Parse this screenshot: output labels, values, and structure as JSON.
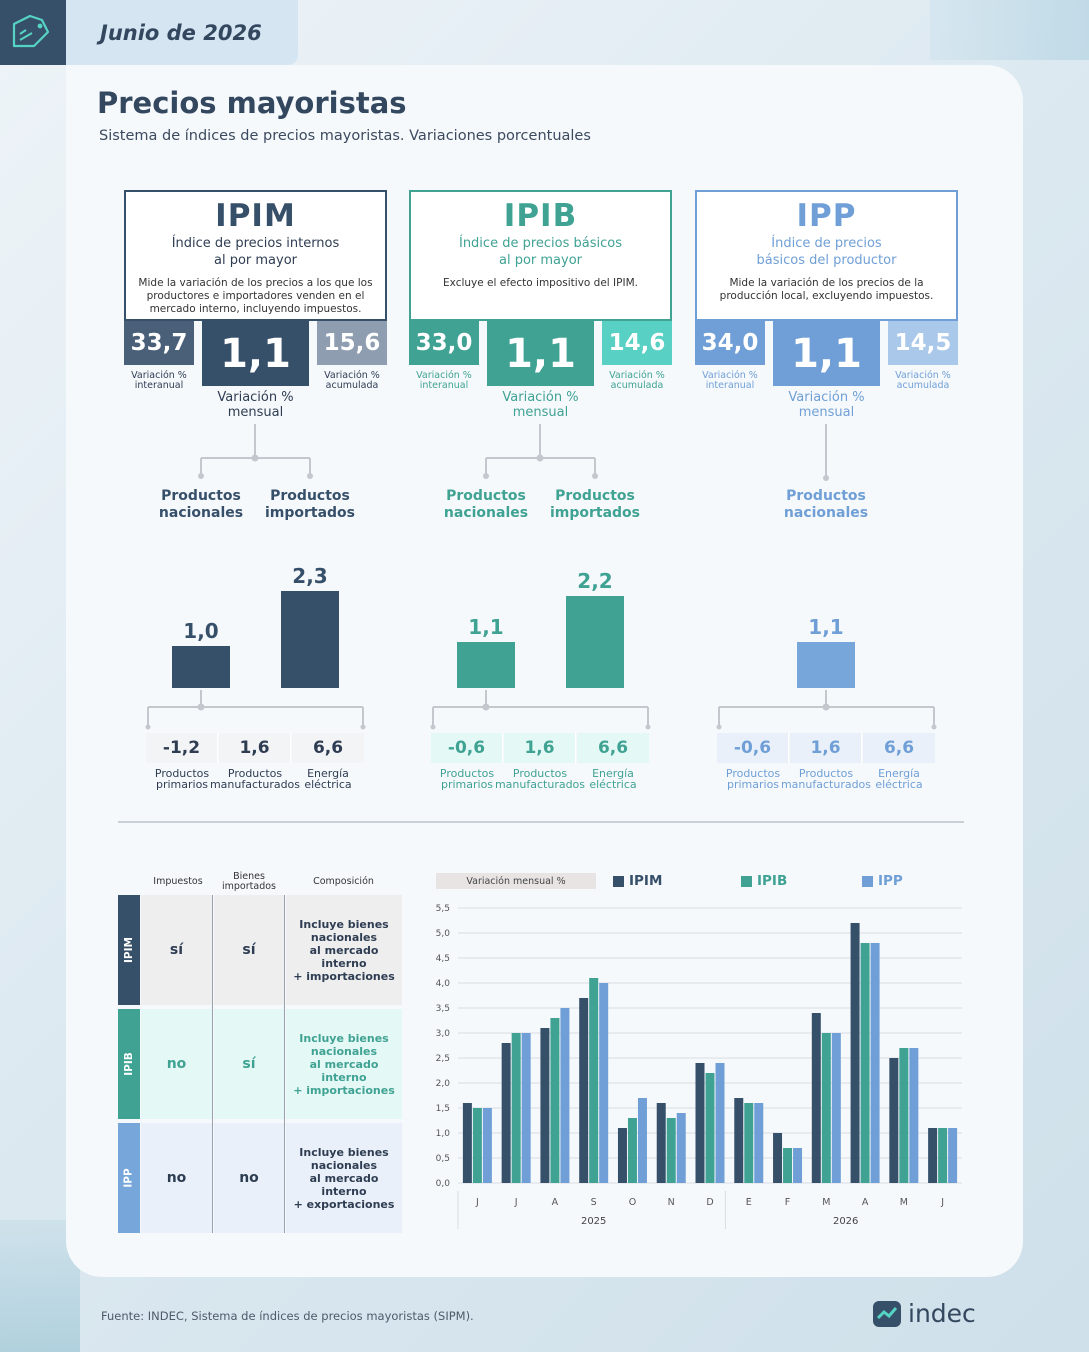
{
  "header": {
    "date": "Junio de 2026"
  },
  "title": "Precios mayoristas",
  "subtitle": "Sistema de índices de precios mayoristas. Variaciones porcentuales",
  "indices": [
    {
      "abbr": "IPIM",
      "name_l1": "Índice de precios internos",
      "name_l2": "al por mayor",
      "description": "Mide la variación de los precios a los que los productores e importadores venden en el mercado interno, incluyendo impuestos.",
      "interanual": "33,7",
      "mensual": "1,1",
      "acumulada": "15,6",
      "color": "#37506a",
      "light": "#8e9db0",
      "products": [
        {
          "l1": "Productos",
          "l2": "nacionales",
          "value": 1.0,
          "label": "1,0"
        },
        {
          "l1": "Productos",
          "l2": "importados",
          "value": 2.3,
          "label": "2,3"
        }
      ],
      "sub": [
        {
          "value": "-1,2",
          "l1": "Productos",
          "l2": "primarios"
        },
        {
          "value": "1,6",
          "l1": "Productos",
          "l2": "manufacturados"
        },
        {
          "value": "6,6",
          "l1": "Energía",
          "l2": "eléctrica"
        }
      ]
    },
    {
      "abbr": "IPIB",
      "name_l1": "Índice de precios básicos",
      "name_l2": "al por mayor",
      "description": "Excluye el efecto impositivo del IPIM.",
      "interanual": "33,0",
      "mensual": "1,1",
      "acumulada": "14,6",
      "color": "#3fa293",
      "light": "#58d1c4",
      "products": [
        {
          "l1": "Productos",
          "l2": "nacionales",
          "value": 1.1,
          "label": "1,1"
        },
        {
          "l1": "Productos",
          "l2": "importados",
          "value": 2.2,
          "label": "2,2"
        }
      ],
      "sub": [
        {
          "value": "-0,6",
          "l1": "Productos",
          "l2": "primarios"
        },
        {
          "value": "1,6",
          "l1": "Productos",
          "l2": "manufacturados"
        },
        {
          "value": "6,6",
          "l1": "Energía",
          "l2": "eléctrica"
        }
      ]
    },
    {
      "abbr": "IPP",
      "name_l1": "Índice de precios",
      "name_l2": "básicos del productor",
      "description": "Mide la variación de los precios de la producción local, excluyendo impuestos.",
      "interanual": "34,0",
      "mensual": "1,1",
      "acumulada": "14,5",
      "color": "#6f9fd6",
      "light": "#a9c8ea",
      "products": [
        {
          "l1": "Productos",
          "l2": "nacionales",
          "value": 1.1,
          "label": "1,1"
        }
      ],
      "sub": [
        {
          "value": "-0,6",
          "l1": "Productos",
          "l2": "primarios"
        },
        {
          "value": "1,6",
          "l1": "Productos",
          "l2": "manufacturados"
        },
        {
          "value": "6,6",
          "l1": "Energía",
          "l2": "eléctrica"
        }
      ]
    }
  ],
  "captions": {
    "interanual_l1": "Variación %",
    "interanual_l2": "interanual",
    "mensual_l1": "Variación %",
    "mensual_l2": "mensual",
    "acumulada_l1": "Variación %",
    "acumulada_l2": "acumulada"
  },
  "table": {
    "headers": {
      "impuestos": "Impuestos",
      "bienes_l1": "Bienes",
      "bienes_l2": "importados",
      "composicion": "Composición"
    },
    "rows": [
      {
        "label": "IPIM",
        "impuestos": "sí",
        "bienes": "sí",
        "comp": [
          "Incluye bienes",
          "nacionales",
          "al mercado",
          "interno",
          "+ importaciones"
        ]
      },
      {
        "label": "IPIB",
        "impuestos": "no",
        "bienes": "sí",
        "comp": [
          "Incluye bienes",
          "nacionales",
          "al mercado interno",
          "+ importaciones"
        ]
      },
      {
        "label": "IPP",
        "impuestos": "no",
        "bienes": "no",
        "comp": [
          "Incluye bienes",
          "nacionales",
          "al mercado interno",
          "+ exportaciones"
        ]
      }
    ]
  },
  "chart_data": {
    "type": "bar",
    "ylabel": "Variación mensual %",
    "ylim": [
      0,
      5.5
    ],
    "yticks": [
      "0,0",
      "0,5",
      "1,0",
      "1,5",
      "2,0",
      "2,5",
      "3,0",
      "3,5",
      "4,0",
      "4,5",
      "5,0",
      "5,5"
    ],
    "categories": [
      "J",
      "J",
      "A",
      "S",
      "O",
      "N",
      "D",
      "E",
      "F",
      "M",
      "A",
      "M",
      "J"
    ],
    "years": [
      {
        "label": "2025",
        "from": 0,
        "to": 6
      },
      {
        "label": "2026",
        "from": 7,
        "to": 12
      }
    ],
    "series": [
      {
        "name": "IPIM",
        "color": "#37506a",
        "values": [
          1.6,
          2.8,
          3.1,
          3.7,
          1.1,
          1.6,
          2.4,
          1.7,
          1.0,
          3.4,
          5.2,
          2.5,
          1.1
        ]
      },
      {
        "name": "IPIB",
        "color": "#3fa293",
        "values": [
          1.5,
          3.0,
          3.3,
          4.1,
          1.3,
          1.3,
          2.2,
          1.6,
          0.7,
          3.0,
          4.8,
          2.7,
          1.1
        ]
      },
      {
        "name": "IPP",
        "color": "#6f9fd6",
        "values": [
          1.5,
          3.0,
          3.5,
          4.0,
          1.7,
          1.4,
          2.4,
          1.6,
          0.7,
          3.0,
          4.8,
          2.7,
          1.1
        ]
      }
    ],
    "grid": true,
    "legend": "top"
  },
  "source": "Fuente: INDEC, Sistema de índices de precios mayoristas (SIPM).",
  "logo": "indec"
}
